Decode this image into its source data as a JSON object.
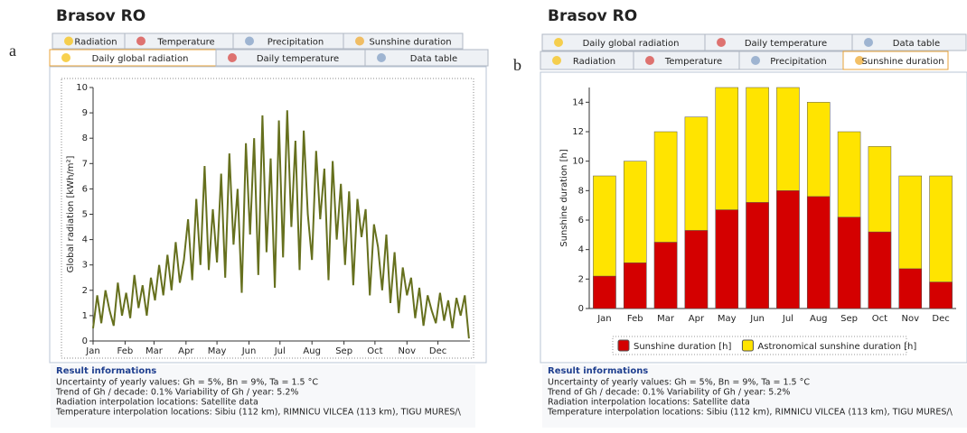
{
  "panels": [
    {
      "label": "a",
      "location": "Brasov RO",
      "tabs_back": [
        "Radiation",
        "Temperature",
        "Precipitation",
        "Sunshine duration"
      ],
      "tabs_front": [
        "Daily global radiation",
        "Daily temperature",
        "Data table"
      ],
      "result_heading": "Result informations",
      "result_lines": [
        "Uncertainty of yearly values: Gh = 5%, Bn = 9%, Ta = 1.5 °C",
        "Trend of Gh / decade: 0.1%   Variability of Gh / year: 5.2%",
        "Radiation interpolation locations: Satellite data",
        "Temperature interpolation locations: Sibiu (112 km), RIMNICU VILCEA (113 km), TIGU MURES/\\"
      ]
    },
    {
      "label": "b",
      "location": "Brasov RO",
      "tabs_back": [
        "Daily global radiation",
        "Daily temperature",
        "Data table"
      ],
      "tabs_front": [
        "Radiation",
        "Temperature",
        "Precipitation",
        "Sunshine duration"
      ],
      "result_heading": "Result informations",
      "result_lines": [
        "Uncertainty of yearly values: Gh = 5%, Bn = 9%, Ta = 1.5 °C",
        "Trend of Gh / decade: 0.1%   Variability of Gh / year: 5.2%",
        "Radiation interpolation locations: Satellite data",
        "Temperature interpolation locations: Sibiu (112 km), RIMNICU VILCEA (113 km), TIGU MURES/\\"
      ]
    }
  ],
  "chart_data": [
    {
      "type": "line",
      "ylabel": "Global radiation [kWh/m²]",
      "color": "#66701e",
      "x": [
        0,
        4,
        8,
        12,
        16,
        20,
        24,
        28,
        32,
        36,
        40,
        44,
        48,
        52,
        56,
        60,
        64,
        68,
        72,
        76,
        80,
        84,
        88,
        92,
        96,
        100,
        104,
        108,
        112,
        116,
        120,
        124,
        128,
        132,
        136,
        140,
        144,
        148,
        152,
        156,
        160,
        164,
        168,
        172,
        176,
        180,
        184,
        188,
        192,
        196,
        200,
        204,
        208,
        212,
        216,
        220,
        224,
        228,
        232,
        236,
        240,
        244,
        248,
        252,
        256,
        260,
        264,
        268,
        272,
        276,
        280,
        284,
        288,
        292,
        296,
        300,
        304,
        308,
        312,
        316,
        320,
        324,
        328,
        332,
        336,
        340,
        344,
        348,
        352,
        356,
        360,
        364
      ],
      "values": [
        0.5,
        1.8,
        0.7,
        2.0,
        1.2,
        0.6,
        2.3,
        1.0,
        1.9,
        0.9,
        2.6,
        1.3,
        2.2,
        1.0,
        2.5,
        1.6,
        3.0,
        1.8,
        3.4,
        2.0,
        3.9,
        2.3,
        3.2,
        4.8,
        2.4,
        5.6,
        3.0,
        6.9,
        2.8,
        5.2,
        3.1,
        6.6,
        2.5,
        7.4,
        3.8,
        6.0,
        1.9,
        7.8,
        4.2,
        8.0,
        2.6,
        8.9,
        3.5,
        7.2,
        2.1,
        8.7,
        3.3,
        9.1,
        4.5,
        7.9,
        2.8,
        8.3,
        5.0,
        3.2,
        7.5,
        4.8,
        6.8,
        2.4,
        7.1,
        4.0,
        6.2,
        3.0,
        5.9,
        2.2,
        5.6,
        4.1,
        5.2,
        1.8,
        4.6,
        3.7,
        2.0,
        4.2,
        1.5,
        3.5,
        1.1,
        2.9,
        1.8,
        2.5,
        0.9,
        2.1,
        0.6,
        1.8,
        1.2,
        0.7,
        1.9,
        0.8,
        1.6,
        0.5,
        1.7,
        1.0,
        1.8,
        0.1
      ],
      "xlim": [
        0,
        365
      ],
      "xticks": [
        {
          "value": 0,
          "label": "Jan"
        },
        {
          "value": 31,
          "label": "Feb"
        },
        {
          "value": 59,
          "label": "Mar"
        },
        {
          "value": 90,
          "label": "Apr"
        },
        {
          "value": 120,
          "label": "May"
        },
        {
          "value": 151,
          "label": "Jun"
        },
        {
          "value": 181,
          "label": "Jul"
        },
        {
          "value": 212,
          "label": "Aug"
        },
        {
          "value": 243,
          "label": "Sep"
        },
        {
          "value": 273,
          "label": "Oct"
        },
        {
          "value": 304,
          "label": "Nov"
        },
        {
          "value": 334,
          "label": "Dec"
        }
      ],
      "ylim": [
        0,
        10
      ],
      "yticks": [
        0,
        1,
        2,
        3,
        4,
        5,
        6,
        7,
        8,
        9,
        10
      ]
    },
    {
      "type": "bar",
      "ylabel": "Sunshine duration [h]",
      "bar_mode": "overlap",
      "categories": [
        "Jan",
        "Feb",
        "Mar",
        "Apr",
        "May",
        "Jun",
        "Jul",
        "Aug",
        "Sep",
        "Oct",
        "Nov",
        "Dec"
      ],
      "series": [
        {
          "name": "Sunshine duration [h]",
          "color": "#d40000",
          "values": [
            2.2,
            3.1,
            4.5,
            5.3,
            6.7,
            7.2,
            8.0,
            7.6,
            6.2,
            5.2,
            2.7,
            1.8
          ]
        },
        {
          "name": "Astronomical sunshine duration [h]",
          "color": "#ffe400",
          "values": [
            9,
            10,
            12,
            13,
            15,
            15,
            15,
            14,
            12,
            11,
            9,
            9
          ]
        }
      ],
      "ylim": [
        0,
        15
      ],
      "yticks": [
        0,
        2,
        4,
        6,
        8,
        10,
        12,
        14
      ]
    }
  ]
}
